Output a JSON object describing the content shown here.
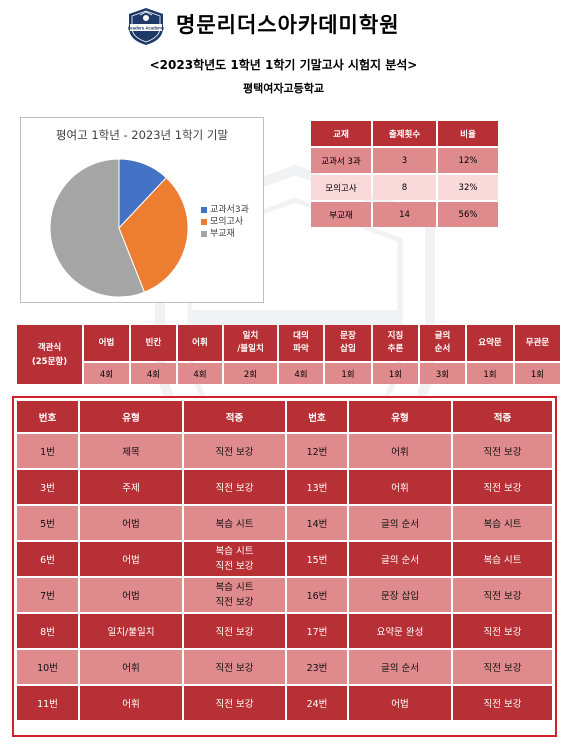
{
  "header": {
    "academy_name": "명문리더스아카데미학원",
    "logo_text": "Leaders Academy",
    "subtitle": "<2023학년도 1학년 1학기 기말고사 시험지 분석>",
    "school": "평택여자고등학교"
  },
  "chart_data": {
    "type": "pie",
    "title": "평여고 1학년 - 2023년 1학기 기말",
    "slices": [
      {
        "label": "교과서3과",
        "value": 3,
        "color": "#4472c4"
      },
      {
        "label": "모의고사",
        "value": 8,
        "color": "#ed7d31"
      },
      {
        "label": "부교재",
        "value": 14,
        "color": "#a5a5a5"
      }
    ],
    "legend_position": "right"
  },
  "summary": {
    "headers": [
      "교재",
      "출제횟수",
      "비율"
    ],
    "rows": [
      [
        "교과서 3과",
        "3",
        "12%"
      ],
      [
        "모의고사",
        "8",
        "32%"
      ],
      [
        "부교재",
        "14",
        "56%"
      ]
    ]
  },
  "types": {
    "category_label": "객관식\n(25문항)",
    "headers": [
      "어법",
      "빈칸",
      "어휘",
      "일치\n/불일치",
      "대의\n파악",
      "문장\n삽입",
      "지칭\n추론",
      "글의\n순서",
      "요약문",
      "무관문"
    ],
    "values": [
      "4회",
      "4회",
      "4회",
      "2회",
      "4회",
      "1회",
      "1회",
      "3회",
      "1회",
      "1회"
    ]
  },
  "detail": {
    "headers": [
      "번호",
      "유형",
      "적중",
      "번호",
      "유형",
      "적중"
    ],
    "rows": [
      [
        "1번",
        "제목",
        "직전 보강",
        "12번",
        "어휘",
        "직전 보강"
      ],
      [
        "3번",
        "주제",
        "직전 보강",
        "13번",
        "어휘",
        "직전 보강"
      ],
      [
        "5번",
        "어법",
        "복습 시트",
        "14번",
        "글의 순서",
        "복습 시트"
      ],
      [
        "6번",
        "어법",
        "복습 시트\n직전 보강",
        "15번",
        "글의 순서",
        "복습 시트"
      ],
      [
        "7번",
        "어법",
        "복습 시트\n직전 보강",
        "16번",
        "문장 삽입",
        "직전 보강"
      ],
      [
        "8번",
        "일치/불일치",
        "직전 보강",
        "17번",
        "요약문 완성",
        "직전 보강"
      ],
      [
        "10번",
        "어휘",
        "직전 보강",
        "23번",
        "글의 순서",
        "직전 보강"
      ],
      [
        "11번",
        "어휘",
        "직전 보강",
        "24번",
        "어법",
        "직전 보강"
      ]
    ]
  }
}
